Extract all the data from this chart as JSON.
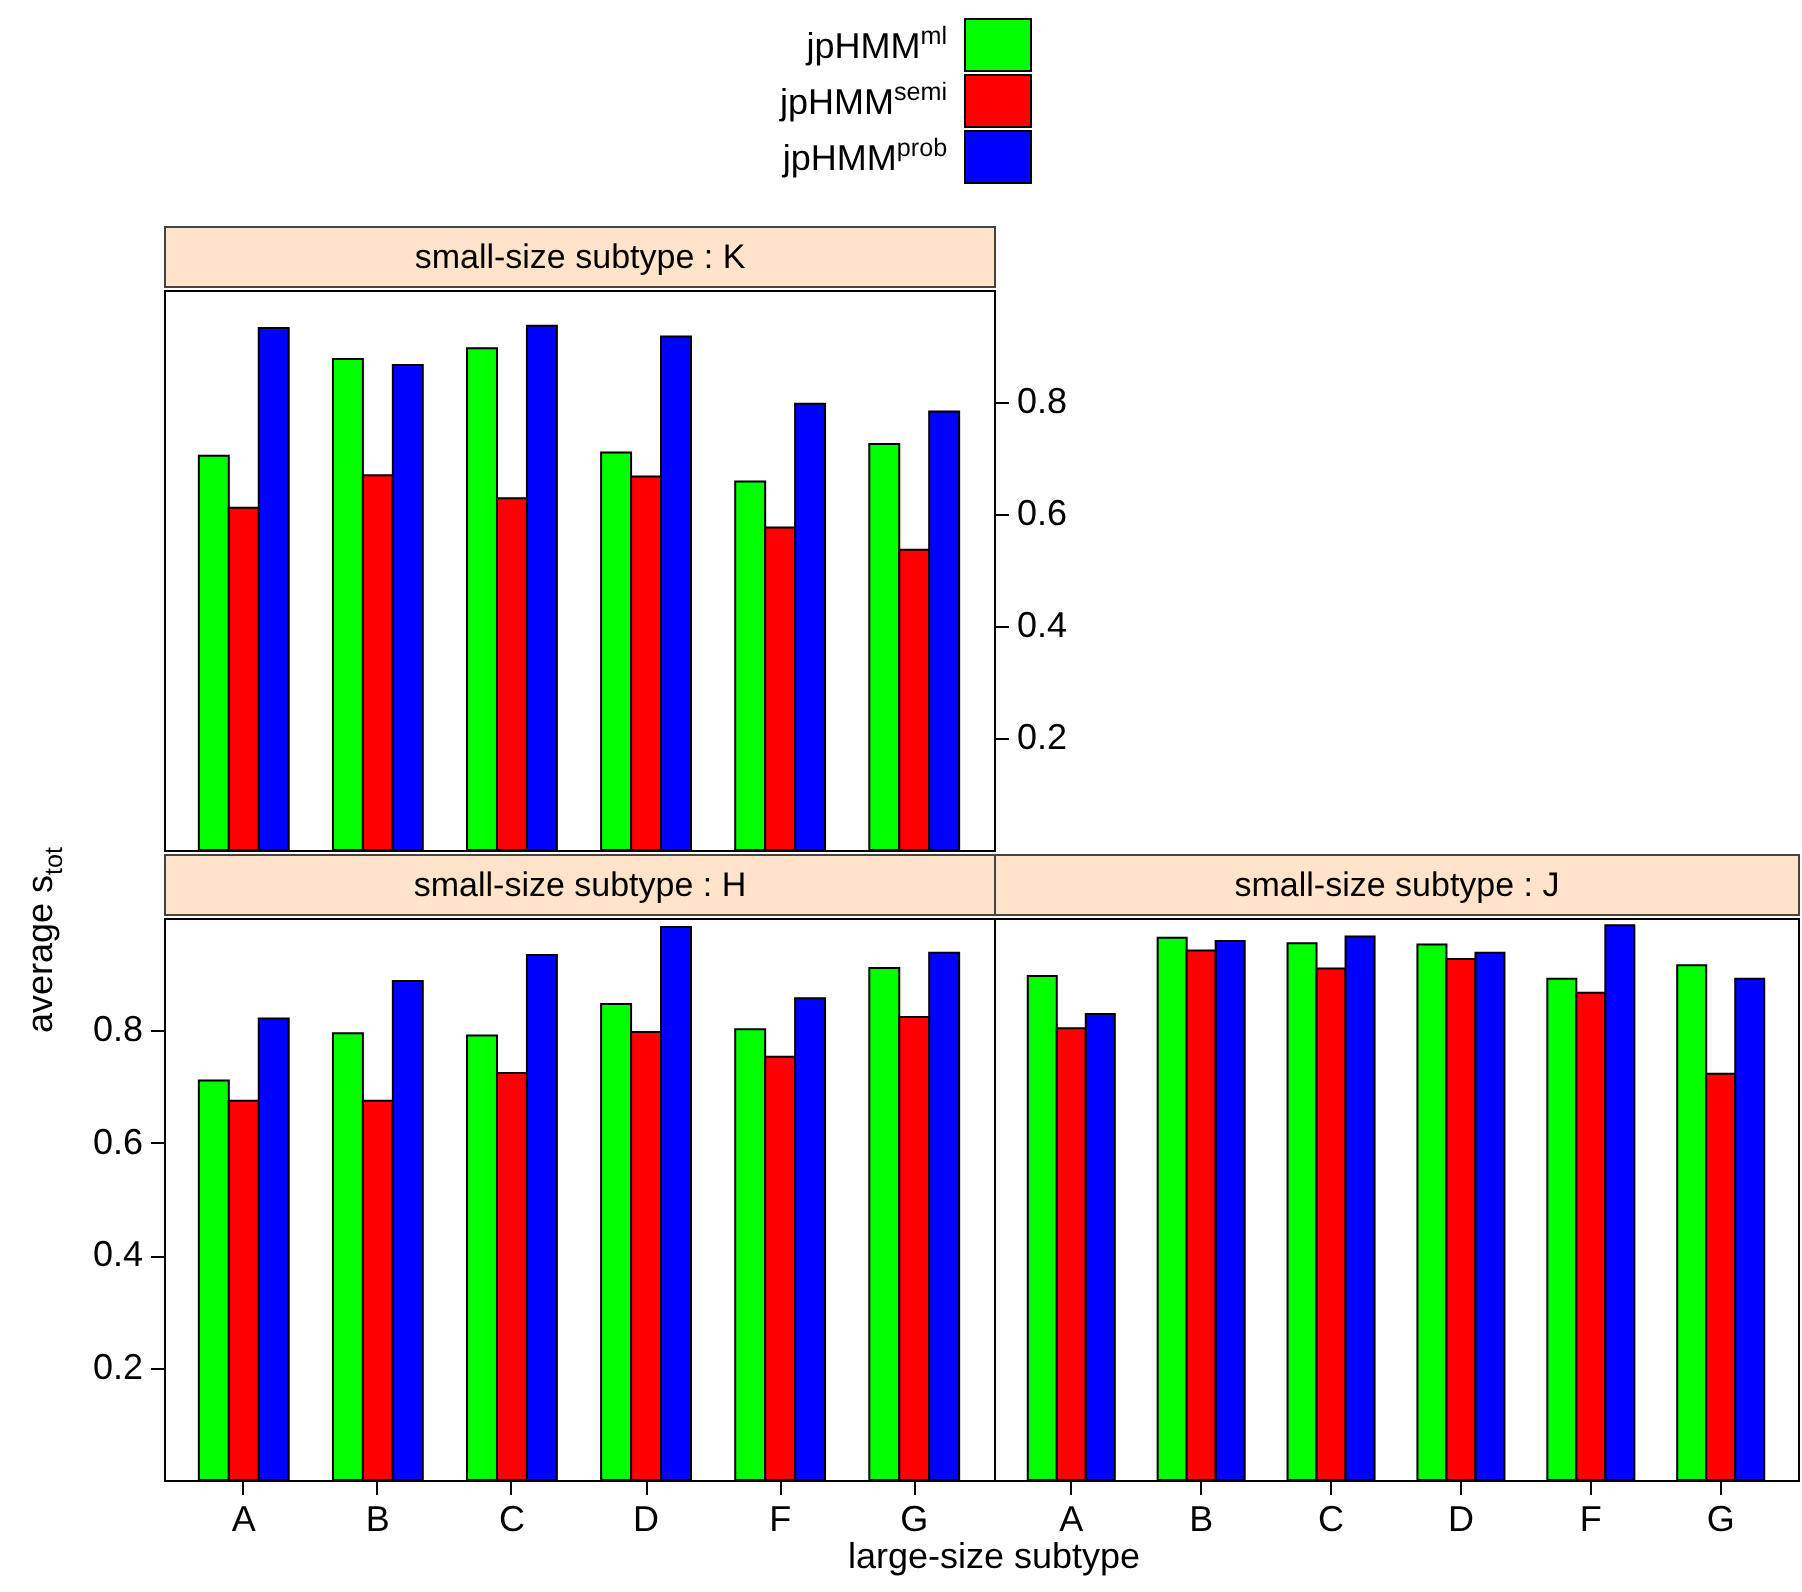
{
  "chart_data": [
    {
      "type": "bar",
      "title": "small-size subtype : K",
      "categories": [
        null,
        null,
        null,
        null,
        null,
        null
      ],
      "legend": "top",
      "tick_labels": "y",
      "ylim": [
        0,
        1
      ],
      "yticks": [
        0.2,
        0.4,
        0.6,
        0.8
      ],
      "series": [
        {
          "name": "jpHMM$^{ml}$",
          "color": "#00ff00",
          "values": [
            0.704,
            0.877,
            0.896,
            0.71,
            0.658,
            0.725
          ]
        },
        {
          "name": "jpHMM$^{semi}$",
          "color": "#ff0000",
          "values": [
            0.611,
            0.669,
            0.628,
            0.667,
            0.576,
            0.536
          ]
        },
        {
          "name": "jpHMM$^{prob}$",
          "color": "#0000ff",
          "values": [
            0.932,
            0.866,
            0.936,
            0.917,
            0.797,
            0.783
          ]
        }
      ]
    },
    {
      "type": "bar",
      "title": "small-size subtype : H",
      "categories": [
        "A",
        "B",
        "C",
        "D",
        "F",
        "G"
      ],
      "xlabel": "large-size subtype",
      "ylabel": "average s$_{tot}$",
      "ylim": [
        0,
        1
      ],
      "yticks": [
        0.2,
        0.4,
        0.6,
        0.8
      ],
      "series": [
        {
          "color": "#00ff00",
          "values": [
            0.711,
            0.795,
            0.791,
            0.847,
            0.802,
            0.911
          ]
        },
        {
          "color": "#ff0000",
          "values": [
            0.675,
            0.675,
            0.724,
            0.797,
            0.753,
            0.824
          ]
        },
        {
          "color": "#0000ff",
          "values": [
            0.821,
            0.888,
            0.934,
            0.984,
            0.857,
            0.938
          ]
        }
      ]
    },
    {
      "type": "bar",
      "title": "small-size subtype : J",
      "categories": [
        "A",
        "B",
        "C",
        "D",
        "F",
        "G"
      ],
      "tick_labels": "x",
      "ylim": [
        0,
        1
      ],
      "yticks": [
        0.2,
        0.4,
        0.6,
        0.8
      ],
      "series": [
        {
          "color": "#00ff00",
          "values": [
            0.897,
            0.965,
            0.955,
            0.953,
            0.892,
            0.916
          ]
        },
        {
          "color": "#ff0000",
          "values": [
            0.804,
            0.942,
            0.91,
            0.927,
            0.867,
            0.723
          ]
        },
        {
          "color": "#0000ff",
          "values": [
            0.829,
            0.959,
            0.967,
            0.938,
            0.987,
            0.892
          ]
        }
      ]
    }
  ]
}
